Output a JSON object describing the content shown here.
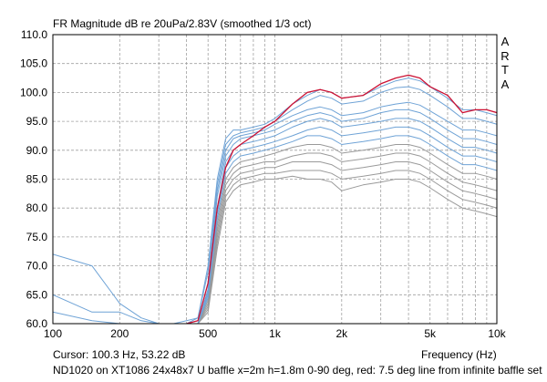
{
  "header": {
    "title": "FR Magnitude dB re 20uPa/2.83V (smoothed 1/3 oct)",
    "brand_letters": [
      "A",
      "R",
      "T",
      "A"
    ]
  },
  "footer": {
    "cursor_readout": "Cursor: 100.3 Hz, 53.22 dB",
    "caption": "ND1020 on XT1086 24x48x7 U baffle x=2m h=1.8m 0-90 deg, red: 7.5 deg line from infinite baffle set"
  },
  "chart_data": {
    "type": "line",
    "title": "FR Magnitude dB re 20uPa/2.83V (smoothed 1/3 oct)",
    "xlabel": "Frequency (Hz)",
    "ylabel": "",
    "x_scale": "log",
    "xlim": [
      100,
      10000
    ],
    "ylim": [
      60,
      110
    ],
    "grid": true,
    "x_tick_labels": [
      {
        "value": 100,
        "label": "100"
      },
      {
        "value": 200,
        "label": "200"
      },
      {
        "value": 500,
        "label": "500"
      },
      {
        "value": 1000,
        "label": "1k"
      },
      {
        "value": 2000,
        "label": "2k"
      },
      {
        "value": 5000,
        "label": "5k"
      },
      {
        "value": 10000,
        "label": "10k"
      }
    ],
    "y_tick_labels": [
      "60.0",
      "65.0",
      "70.0",
      "75.0",
      "80.0",
      "85.0",
      "90.0",
      "95.0",
      "100.0",
      "105.0",
      "110.0"
    ],
    "colors": {
      "red": "#cc1133",
      "blue": "#6fa3d6",
      "gray": "#9a9a9a",
      "grid": "#a0a0a0"
    },
    "x": [
      100,
      150,
      200,
      250,
      300,
      350,
      400,
      450,
      500,
      550,
      600,
      650,
      700,
      800,
      900,
      1000,
      1200,
      1400,
      1600,
      1800,
      2000,
      2500,
      3000,
      3500,
      4000,
      4500,
      5000,
      6000,
      7000,
      8000,
      9000,
      10000
    ],
    "series": [
      {
        "color": "red",
        "values": [
          null,
          null,
          61.5,
          null,
          null,
          null,
          60,
          60.5,
          67,
          80,
          87,
          90,
          91,
          92.5,
          94,
          95,
          98,
          100,
          100.5,
          100,
          99,
          99.5,
          101.5,
          102.5,
          103,
          102.5,
          101,
          99.5,
          96.5,
          97,
          97,
          96.5
        ]
      },
      {
        "color": "blue",
        "values": [
          65,
          62,
          62,
          60.5,
          60,
          60,
          60.5,
          61,
          70,
          85,
          92,
          93.5,
          93.5,
          94,
          94.5,
          95.5,
          98,
          99.5,
          100.5,
          100,
          99,
          99.5,
          101,
          102,
          102.5,
          102,
          101,
          99,
          97,
          97,
          96.5,
          96
        ]
      },
      {
        "color": "blue",
        "values": [
          62,
          60.5,
          60,
          60,
          60,
          60,
          60,
          61,
          69,
          84,
          91,
          92.5,
          93,
          93.5,
          94,
          95,
          97,
          98.5,
          99.5,
          99,
          98,
          98.5,
          100,
          100.8,
          101,
          100.5,
          99.5,
          97.5,
          95.5,
          95.5,
          95,
          94.5
        ]
      },
      {
        "color": "blue",
        "values": [
          72,
          70,
          63.5,
          61,
          60,
          60,
          60,
          60.5,
          67,
          83,
          90,
          92,
          92.5,
          93,
          93.5,
          94.5,
          96,
          97,
          97.5,
          97,
          96,
          96.5,
          97.5,
          98,
          98.3,
          97.8,
          96.8,
          95,
          93.5,
          93.5,
          93,
          92.5
        ]
      },
      {
        "color": "blue",
        "values": [
          60,
          60,
          60,
          60,
          60,
          60,
          60,
          60,
          66,
          82,
          89,
          91,
          92,
          92.5,
          93,
          93.5,
          95,
          96,
          96.5,
          96,
          95,
          95.5,
          96.5,
          97,
          97,
          96.5,
          95.5,
          93.5,
          92,
          92,
          91.5,
          91
        ]
      },
      {
        "color": "blue",
        "values": [
          60,
          60,
          60,
          60,
          60,
          60,
          60,
          60,
          65.5,
          80,
          88,
          90,
          91,
          91.5,
          92,
          92.5,
          94,
          95,
          95.5,
          95,
          94,
          94.5,
          95,
          95.5,
          95.5,
          95,
          94,
          92,
          90.5,
          90.5,
          90,
          89.5
        ]
      },
      {
        "color": "blue",
        "values": [
          60,
          60,
          60,
          60,
          60,
          60,
          60,
          60,
          65,
          79,
          87,
          89,
          90,
          90.5,
          91,
          91.5,
          92.5,
          93.5,
          94,
          93.5,
          92.5,
          93,
          93.5,
          94,
          94,
          93.5,
          92.5,
          90.5,
          89,
          89,
          88.5,
          88
        ]
      },
      {
        "color": "blue",
        "values": [
          60,
          60,
          60,
          60,
          60,
          60,
          60,
          60,
          64.5,
          78,
          86,
          88,
          89,
          89.5,
          90,
          90.5,
          91.5,
          92.5,
          92.5,
          92,
          91,
          91.5,
          92,
          92.5,
          92.5,
          92,
          91,
          89,
          87.5,
          87.5,
          87,
          86.5
        ]
      },
      {
        "color": "gray",
        "values": [
          60,
          60,
          60,
          60,
          60,
          60,
          60,
          60,
          64,
          77,
          85,
          87,
          88,
          88.5,
          89,
          89.5,
          90.5,
          91,
          91,
          90.5,
          89.5,
          90,
          90.5,
          91,
          91,
          90.5,
          89.5,
          87.5,
          86,
          86,
          85.5,
          85
        ]
      },
      {
        "color": "gray",
        "values": [
          60,
          60,
          60,
          60,
          60,
          60,
          60,
          60,
          63.5,
          76,
          84,
          86,
          87,
          87.5,
          88,
          88,
          89,
          89.5,
          89.5,
          89,
          88,
          88.5,
          89,
          89.5,
          89.5,
          89,
          88,
          86,
          84.5,
          84,
          83.5,
          83
        ]
      },
      {
        "color": "gray",
        "values": [
          60,
          60,
          60,
          60,
          60,
          60,
          60,
          60,
          63,
          75,
          83,
          85,
          86,
          86.5,
          87,
          87,
          88,
          88,
          88,
          87.5,
          86.5,
          87,
          87.5,
          88,
          88,
          87.5,
          86.5,
          84.5,
          83,
          82.5,
          82,
          81.5
        ]
      },
      {
        "color": "gray",
        "values": [
          60,
          60,
          60,
          60,
          60,
          60,
          60,
          60,
          62.5,
          74,
          82,
          84,
          85,
          85.5,
          86,
          86,
          86.5,
          86.5,
          86.5,
          86,
          85,
          85.5,
          86,
          86.5,
          86.5,
          86,
          85,
          83,
          81.5,
          81,
          80.5,
          80
        ]
      },
      {
        "color": "gray",
        "values": [
          60,
          60,
          60,
          60,
          60,
          60,
          60,
          60,
          62,
          73,
          81,
          83,
          84,
          84.5,
          85,
          85,
          85.5,
          85,
          85,
          84.5,
          83,
          84,
          84.5,
          85,
          85,
          84.5,
          83.5,
          81.5,
          80,
          79.5,
          79,
          78.5
        ]
      }
    ]
  }
}
